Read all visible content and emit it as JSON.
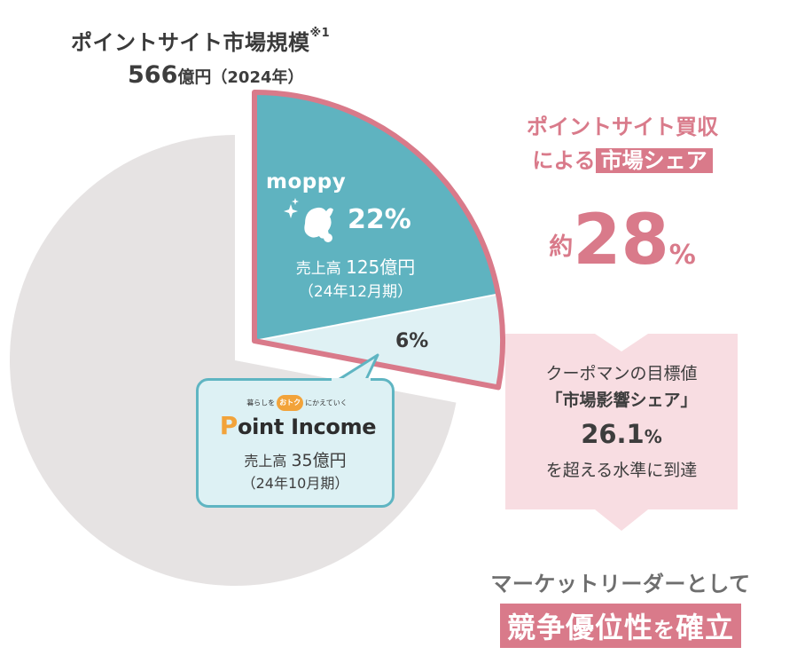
{
  "title": {
    "main": "ポイントサイト市場規模",
    "note_mark": "※1",
    "size_value": "566",
    "size_unit": "億円",
    "year": "（2024年）"
  },
  "chart_data": {
    "type": "pie",
    "title": "ポイントサイト市場規模",
    "slices": [
      {
        "label": "moppy",
        "value": 22,
        "percent_label": "22%",
        "color": "#5fb3c0"
      },
      {
        "label": "Point Income",
        "value": 6,
        "percent_label": "6%",
        "color": "#dff1f4"
      },
      {
        "label": "",
        "value": 72,
        "color": "#e6e3e3"
      }
    ],
    "combined_outline_color": "#d97a8a"
  },
  "moppy": {
    "logo": "moppy",
    "percent": "22%",
    "sales_label": "売上高",
    "sales_value": "125億円",
    "period": "（24年12月期）"
  },
  "point_income": {
    "catch_pre": "暮らしを",
    "catch_otoku": "おトク",
    "catch_post": "にかえていく",
    "logo_p": "P",
    "logo_rest": "oint Income",
    "percent": "6%",
    "sales_label": "売上高",
    "sales_value": "35億円",
    "period": "（24年10月期）"
  },
  "share": {
    "line1": "ポイントサイト買収",
    "line2_pre": "による",
    "line2_hl": "市場シェア",
    "approx": "約",
    "value": "28",
    "unit": "%"
  },
  "target": {
    "line1": "クーポマンの目標値",
    "line2": "「市場影響シェア」",
    "value": "26.1",
    "unit": "%",
    "line4": "を超える水準に到達"
  },
  "conclusion": {
    "leader": "マーケットリーダーとして",
    "box1": "競争優位性",
    "wo": "を",
    "box2": "確立"
  },
  "colors": {
    "accent_pink": "#d97a8a",
    "teal": "#5fb3c0",
    "light_teal": "#dff1f4",
    "gray": "#e6e3e3",
    "box_pink": "#f8dde2"
  }
}
